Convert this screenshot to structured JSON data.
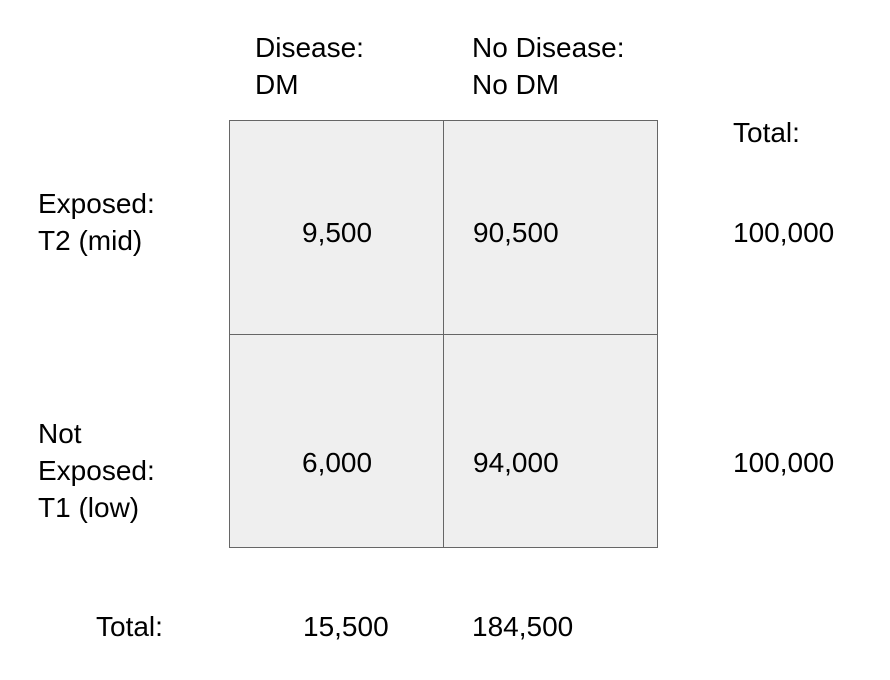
{
  "column_headers": [
    [
      "Disease:",
      "DM"
    ],
    [
      "No Disease:",
      "No DM"
    ]
  ],
  "total_header": "Total:",
  "row_headers": [
    [
      "Exposed:",
      "T2 (mid)"
    ],
    [
      "Not",
      "Exposed:",
      "T1 (low)"
    ]
  ],
  "cells": [
    [
      "9,500",
      "90,500"
    ],
    [
      "6,000",
      "94,000"
    ]
  ],
  "row_totals": [
    "100,000",
    "100,000"
  ],
  "column_totals_label": "Total:",
  "column_totals": [
    "15,500",
    "184,500"
  ],
  "colors": {
    "cell_fill": "#efefef",
    "cell_border": "#666666",
    "text": "#000000"
  }
}
